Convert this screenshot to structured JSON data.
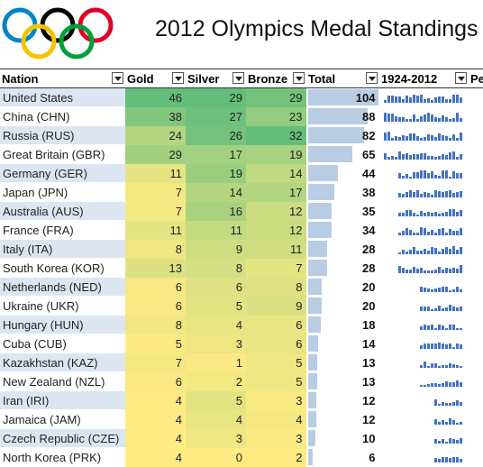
{
  "title": "2012 Olympics Medal Standings",
  "columns": {
    "nation": "Nation",
    "gold": "Gold",
    "silver": "Silver",
    "bronze": "Bronze",
    "total": "Total",
    "history": "1924-2012",
    "pe": "Pe"
  },
  "colors": {
    "gold_high": "#63be7b",
    "gold_low": "#ffeb84",
    "total_bar": "#b8cce4",
    "spark": "#4472c4",
    "row_band": "#dce6f2"
  },
  "rows": [
    {
      "nation": "United States",
      "gold": "46",
      "silver": "29",
      "bronze": "29",
      "total": "104"
    },
    {
      "nation": "China (CHN)",
      "gold": "38",
      "silver": "27",
      "bronze": "23",
      "total": "88"
    },
    {
      "nation": "Russia (RUS)",
      "gold": "24",
      "silver": "26",
      "bronze": "32",
      "total": "82"
    },
    {
      "nation": "Great Britain (GBR)",
      "gold": "29",
      "silver": "17",
      "bronze": "19",
      "total": "65"
    },
    {
      "nation": "Germany (GER)",
      "gold": "11",
      "silver": "19",
      "bronze": "14",
      "total": "44"
    },
    {
      "nation": "Japan (JPN)",
      "gold": "7",
      "silver": "14",
      "bronze": "17",
      "total": "38"
    },
    {
      "nation": "Australia (AUS)",
      "gold": "7",
      "silver": "16",
      "bronze": "12",
      "total": "35"
    },
    {
      "nation": "France (FRA)",
      "gold": "11",
      "silver": "11",
      "bronze": "12",
      "total": "34"
    },
    {
      "nation": "Italy (ITA)",
      "gold": "8",
      "silver": "9",
      "bronze": "11",
      "total": "28"
    },
    {
      "nation": "South Korea (KOR)",
      "gold": "13",
      "silver": "8",
      "bronze": "7",
      "total": "28"
    },
    {
      "nation": "Netherlands (NED)",
      "gold": "6",
      "silver": "6",
      "bronze": "8",
      "total": "20"
    },
    {
      "nation": "Ukraine (UKR)",
      "gold": "6",
      "silver": "5",
      "bronze": "9",
      "total": "20"
    },
    {
      "nation": "Hungary (HUN)",
      "gold": "8",
      "silver": "4",
      "bronze": "6",
      "total": "18"
    },
    {
      "nation": "Cuba (CUB)",
      "gold": "5",
      "silver": "3",
      "bronze": "6",
      "total": "14"
    },
    {
      "nation": "Kazakhstan (KAZ)",
      "gold": "7",
      "silver": "1",
      "bronze": "5",
      "total": "13"
    },
    {
      "nation": "New Zealand (NZL)",
      "gold": "6",
      "silver": "2",
      "bronze": "5",
      "total": "13"
    },
    {
      "nation": "Iran (IRI)",
      "gold": "4",
      "silver": "5",
      "bronze": "3",
      "total": "12"
    },
    {
      "nation": "Jamaica (JAM)",
      "gold": "4",
      "silver": "4",
      "bronze": "4",
      "total": "12"
    },
    {
      "nation": "Czech Republic (CZE)",
      "gold": "4",
      "silver": "3",
      "bronze": "3",
      "total": "10"
    },
    {
      "nation": "North Korea (PRK)",
      "gold": "4",
      "silver": "0",
      "bronze": "2",
      "total": "6"
    }
  ]
}
